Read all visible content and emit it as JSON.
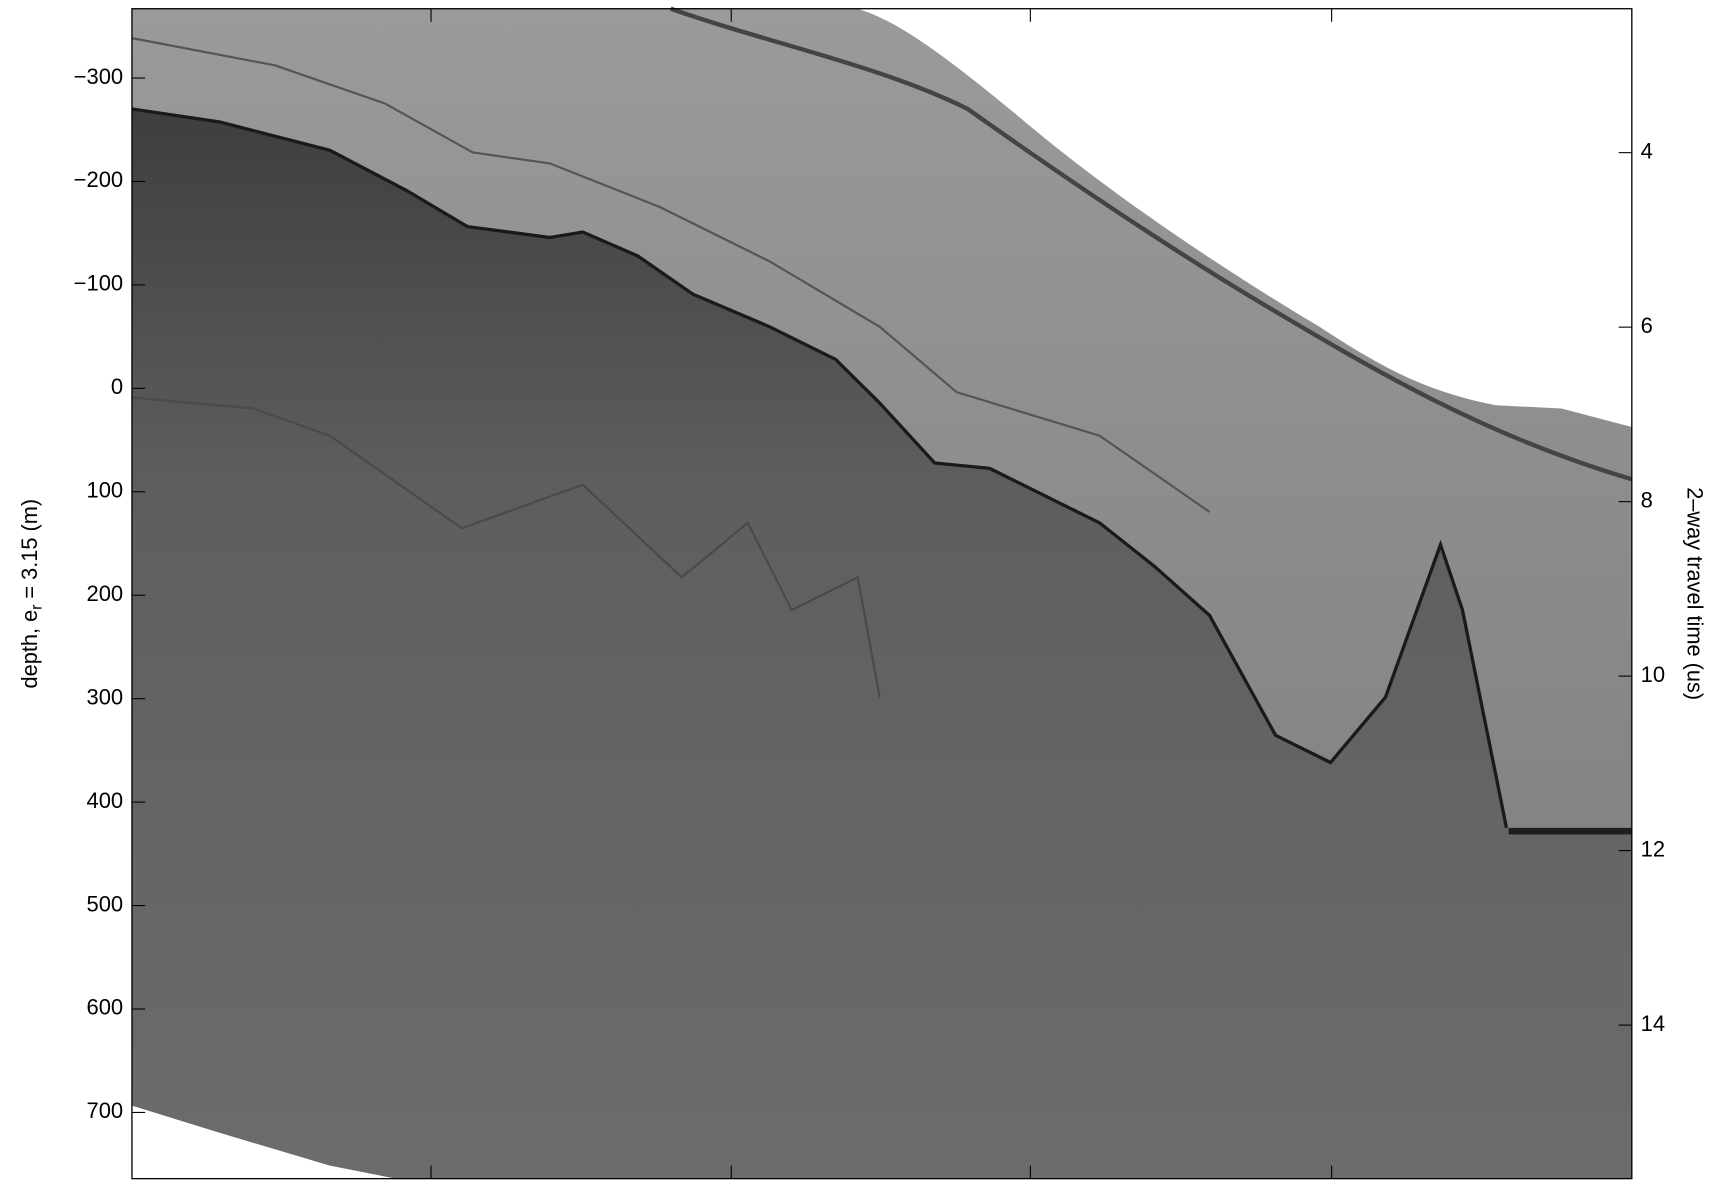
{
  "chart_data": {
    "type": "radargram",
    "ylabel": [
      "depth, e",
      "r",
      " = 3.15 (m)"
    ],
    "y2label": "2–way travel time (us)",
    "y_inverted": true,
    "ylim": [
      -367,
      764
    ],
    "yticks": [
      {
        "value": -300,
        "label": "−300"
      },
      {
        "value": -200,
        "label": "−200"
      },
      {
        "value": -100,
        "label": "−100"
      },
      0,
      100,
      200,
      300,
      400,
      500,
      600,
      700
    ],
    "y2lim": [
      2.35,
      15.76
    ],
    "y2ticks": [
      4,
      6,
      8,
      10,
      12,
      14
    ]
  }
}
